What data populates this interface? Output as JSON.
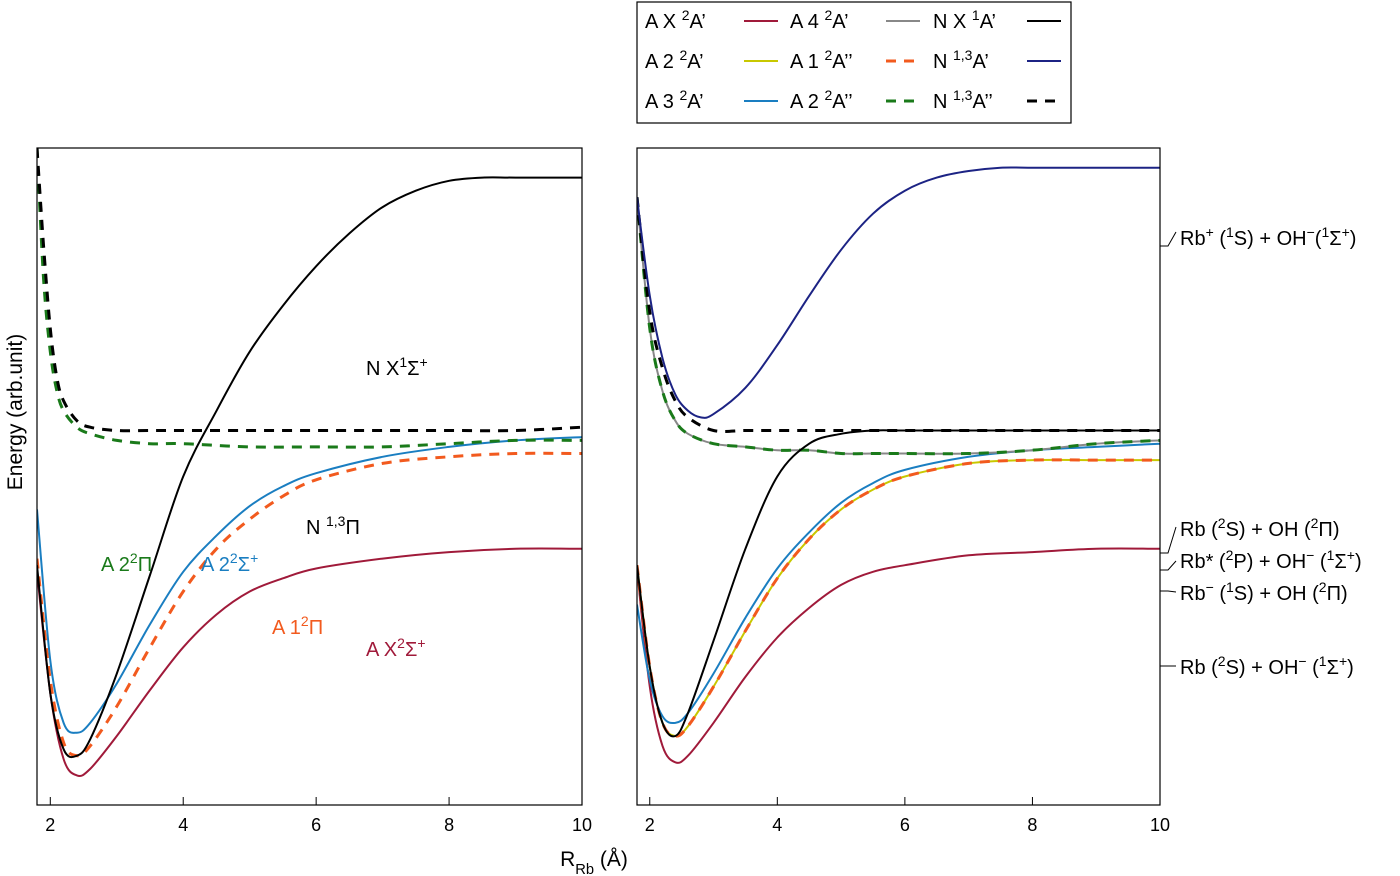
{
  "chart_data": {
    "type": "line",
    "xlabel": "R",
    "xlabel_sub": "Rb",
    "xlabel_unit": " (Å)",
    "ylabel": "Energy (arb.unit)",
    "xlim": [
      1.8,
      10
    ],
    "ylim": [
      -1.0,
      1.0
    ],
    "xticks": [
      "2",
      "4",
      "6",
      "8",
      "10"
    ],
    "grid": false,
    "legend_position": "top-right",
    "legend": [
      {
        "pre": "A X ",
        "sup": "2",
        "post": "A’",
        "color": "#a01a3a",
        "dash": false
      },
      {
        "pre": "A 2 ",
        "sup": "2",
        "post": "A’",
        "color": "#c8c800",
        "dash": false
      },
      {
        "pre": "A 3 ",
        "sup": "2",
        "post": "A’",
        "color": "#1a7ec1",
        "dash": false
      },
      {
        "pre": "A 4 ",
        "sup": "2",
        "post": "A’",
        "color": "#888888",
        "dash": false
      },
      {
        "pre": "A 1 ",
        "sup": "2",
        "post": "A’’",
        "color": "#f25a1e",
        "dash": true
      },
      {
        "pre": "A 2 ",
        "sup": "2",
        "post": "A’’",
        "color": "#1a7a1a",
        "dash": true
      },
      {
        "pre": "N X ",
        "sup": "1",
        "post": "A’",
        "color": "#000000",
        "dash": false
      },
      {
        "pre": "N ",
        "sup": "1,3",
        "post": "A’",
        "color": "#1c2384",
        "dash": false
      },
      {
        "pre": "N ",
        "sup": "1,3",
        "post": "A’’",
        "color": "#000000",
        "dash": true
      }
    ],
    "left_panel": {
      "annotations": [
        {
          "parts": [
            "N X",
            "^1",
            "Σ",
            "^+"
          ],
          "color": "#000000"
        },
        {
          "parts": [
            "N ",
            "^1,3",
            "Π"
          ],
          "color": "#000000"
        },
        {
          "parts": [
            "A 2",
            "^2",
            "Π"
          ],
          "color": "#1a7a1a"
        },
        {
          "parts": [
            "A 2",
            "^2",
            "Σ",
            "^+"
          ],
          "color": "#1a7ec1"
        },
        {
          "parts": [
            "A 1",
            "^2",
            "Π"
          ],
          "color": "#f25a1e"
        },
        {
          "parts": [
            "A X",
            "^2",
            "Σ",
            "^+"
          ],
          "color": "#a01a3a"
        }
      ],
      "series": [
        {
          "name": "A X²Σ⁺",
          "color": "#a01a3a",
          "dash": false,
          "x": [
            1.8,
            2.0,
            2.2,
            2.4,
            2.6,
            3.0,
            3.5,
            4.0,
            4.5,
            5.0,
            5.5,
            6.0,
            7.0,
            8.0,
            9.0,
            10.0
          ],
          "y": [
            -0.29,
            -0.66,
            -0.86,
            -0.91,
            -0.89,
            -0.79,
            -0.65,
            -0.52,
            -0.42,
            -0.35,
            -0.31,
            -0.28,
            -0.25,
            -0.23,
            -0.22,
            -0.22
          ]
        },
        {
          "name": "A 1²Π",
          "color": "#f25a1e",
          "dash": true,
          "x": [
            1.8,
            2.0,
            2.2,
            2.4,
            2.6,
            3.0,
            3.5,
            4.0,
            4.5,
            5.0,
            5.5,
            6.0,
            7.0,
            8.0,
            9.0,
            10.0
          ],
          "y": [
            -0.25,
            -0.62,
            -0.81,
            -0.85,
            -0.82,
            -0.7,
            -0.52,
            -0.35,
            -0.22,
            -0.13,
            -0.06,
            -0.01,
            0.04,
            0.06,
            0.07,
            0.07
          ]
        },
        {
          "name": "A 2²Σ⁺",
          "color": "#1a7ec1",
          "dash": false,
          "x": [
            1.8,
            2.0,
            2.2,
            2.4,
            2.6,
            3.0,
            3.5,
            4.0,
            4.5,
            5.0,
            5.5,
            6.0,
            7.0,
            8.0,
            9.0,
            10.0
          ],
          "y": [
            -0.1,
            -0.56,
            -0.75,
            -0.78,
            -0.75,
            -0.63,
            -0.45,
            -0.29,
            -0.18,
            -0.09,
            -0.03,
            0.01,
            0.06,
            0.09,
            0.11,
            0.12
          ]
        },
        {
          "name": "A 2²Π",
          "color": "#1a7a1a",
          "dash": true,
          "x": [
            1.8,
            1.9,
            2.0,
            2.1,
            2.2,
            2.4,
            2.6,
            3.0,
            3.5,
            4.0,
            5.0,
            6.0,
            7.0,
            8.0,
            9.0,
            10.0
          ],
          "y": [
            1.0,
            0.6,
            0.38,
            0.26,
            0.2,
            0.15,
            0.13,
            0.11,
            0.1,
            0.1,
            0.09,
            0.09,
            0.09,
            0.1,
            0.11,
            0.11
          ]
        },
        {
          "name": "N ¹,³Π",
          "color": "#000000",
          "dash": true,
          "x": [
            1.8,
            1.9,
            2.0,
            2.1,
            2.2,
            2.4,
            2.6,
            3.0,
            3.5,
            4.0,
            5.0,
            6.0,
            7.0,
            8.0,
            9.0,
            10.0
          ],
          "y": [
            1.0,
            0.7,
            0.45,
            0.3,
            0.23,
            0.17,
            0.15,
            0.14,
            0.14,
            0.14,
            0.14,
            0.14,
            0.14,
            0.14,
            0.14,
            0.15
          ]
        },
        {
          "name": "N X¹Σ⁺",
          "color": "#000000",
          "dash": false,
          "x": [
            1.8,
            2.0,
            2.2,
            2.4,
            2.6,
            3.0,
            3.5,
            4.0,
            4.5,
            5.0,
            5.5,
            6.0,
            6.5,
            7.0,
            7.5,
            8.0,
            8.5,
            9.0,
            10.0
          ],
          "y": [
            -0.27,
            -0.66,
            -0.83,
            -0.85,
            -0.8,
            -0.6,
            -0.3,
            0.0,
            0.2,
            0.38,
            0.52,
            0.64,
            0.74,
            0.82,
            0.87,
            0.9,
            0.91,
            0.91,
            0.91
          ]
        }
      ]
    },
    "right_panel": {
      "asymptote_labels": [
        {
          "parts": [
            "Rb",
            "^+",
            " (",
            "^1",
            "S) + OH",
            "^−",
            "(",
            "^1",
            "Σ",
            "^+",
            ")"
          ]
        },
        {
          "parts": [
            "Rb (",
            "^2",
            "S) + OH (",
            "^2",
            "Π)"
          ]
        },
        {
          "parts": [
            "Rb*",
            " (",
            "^2",
            "P) + OH",
            "^−",
            " (",
            "^1",
            "Σ",
            "^+",
            ")"
          ]
        },
        {
          "parts": [
            "Rb",
            "^−",
            " (",
            "^1",
            "S) + OH (",
            "^2",
            "Π)"
          ]
        },
        {
          "parts": [
            "Rb (",
            "^2",
            "S) + OH",
            "^−",
            " (",
            "^1",
            "Σ",
            "^+",
            ")"
          ]
        }
      ],
      "series": [
        {
          "name": "A X ²A’",
          "color": "#a01a3a",
          "dash": false,
          "x": [
            1.8,
            2.0,
            2.2,
            2.4,
            2.6,
            3.0,
            3.5,
            4.0,
            4.5,
            5.0,
            5.5,
            6.0,
            7.0,
            8.0,
            9.0,
            10.0
          ],
          "y": [
            -0.28,
            -0.64,
            -0.82,
            -0.87,
            -0.85,
            -0.75,
            -0.61,
            -0.49,
            -0.4,
            -0.33,
            -0.29,
            -0.27,
            -0.24,
            -0.23,
            -0.22,
            -0.22
          ]
        },
        {
          "name": "A 2 ²A’",
          "color": "#c8c800",
          "dash": false,
          "x": [
            1.8,
            2.0,
            2.2,
            2.4,
            2.6,
            3.0,
            3.5,
            4.0,
            4.5,
            5.0,
            5.5,
            6.0,
            7.0,
            8.0,
            9.0,
            10.0
          ],
          "y": [
            -0.27,
            -0.58,
            -0.75,
            -0.79,
            -0.76,
            -0.64,
            -0.47,
            -0.31,
            -0.19,
            -0.1,
            -0.04,
            0.0,
            0.04,
            0.05,
            0.05,
            0.05
          ]
        },
        {
          "name": "A 1 ²A’’",
          "color": "#f25a1e",
          "dash": true,
          "x": [
            1.8,
            2.0,
            2.2,
            2.4,
            2.6,
            3.0,
            3.5,
            4.0,
            4.5,
            5.0,
            5.5,
            6.0,
            7.0,
            8.0,
            9.0,
            10.0
          ],
          "y": [
            -0.27,
            -0.58,
            -0.75,
            -0.79,
            -0.76,
            -0.64,
            -0.47,
            -0.31,
            -0.19,
            -0.1,
            -0.04,
            0.0,
            0.04,
            0.05,
            0.05,
            0.05
          ]
        },
        {
          "name": "A 3 ²A’",
          "color": "#1a7ec1",
          "dash": false,
          "x": [
            1.8,
            2.0,
            2.2,
            2.4,
            2.6,
            3.0,
            3.5,
            4.0,
            4.5,
            5.0,
            5.5,
            6.0,
            7.0,
            8.0,
            9.0,
            10.0
          ],
          "y": [
            -0.39,
            -0.62,
            -0.73,
            -0.75,
            -0.72,
            -0.6,
            -0.43,
            -0.28,
            -0.17,
            -0.08,
            -0.02,
            0.02,
            0.06,
            0.08,
            0.09,
            0.1
          ]
        },
        {
          "name": "A 4 ²A’",
          "color": "#888888",
          "dash": false,
          "x": [
            1.8,
            2.0,
            2.2,
            2.4,
            2.6,
            3.0,
            3.5,
            4.0,
            4.5,
            5.0,
            5.5,
            6.0,
            7.0,
            8.0,
            9.0,
            10.0
          ],
          "y": [
            0.85,
            0.45,
            0.26,
            0.17,
            0.13,
            0.1,
            0.09,
            0.08,
            0.08,
            0.07,
            0.07,
            0.07,
            0.07,
            0.08,
            0.1,
            0.11
          ]
        },
        {
          "name": "A 2 ²A’’",
          "color": "#1a7a1a",
          "dash": true,
          "x": [
            1.8,
            2.0,
            2.2,
            2.4,
            2.6,
            3.0,
            3.5,
            4.0,
            4.5,
            5.0,
            5.5,
            6.0,
            7.0,
            8.0,
            9.0,
            10.0
          ],
          "y": [
            0.85,
            0.45,
            0.26,
            0.17,
            0.13,
            0.1,
            0.09,
            0.08,
            0.08,
            0.07,
            0.07,
            0.07,
            0.07,
            0.08,
            0.1,
            0.11
          ]
        },
        {
          "name": "N ¹,³A’’",
          "color": "#000000",
          "dash": true,
          "x": [
            1.8,
            2.0,
            2.2,
            2.4,
            2.6,
            3.0,
            3.5,
            4.0,
            5.0,
            6.0,
            7.0,
            8.0,
            9.0,
            10.0
          ],
          "y": [
            0.85,
            0.5,
            0.33,
            0.23,
            0.18,
            0.14,
            0.14,
            0.14,
            0.14,
            0.14,
            0.14,
            0.14,
            0.14,
            0.14
          ]
        },
        {
          "name": "N ¹,³A’",
          "color": "#1c2384",
          "dash": false,
          "x": [
            1.8,
            2.0,
            2.2,
            2.4,
            2.6,
            2.8,
            3.0,
            3.5,
            4.0,
            4.5,
            5.0,
            5.5,
            6.0,
            6.5,
            7.0,
            7.5,
            8.0,
            8.5,
            9.0,
            10.0
          ],
          "y": [
            0.85,
            0.55,
            0.36,
            0.25,
            0.2,
            0.18,
            0.19,
            0.27,
            0.4,
            0.55,
            0.69,
            0.8,
            0.87,
            0.91,
            0.93,
            0.94,
            0.94,
            0.94,
            0.94,
            0.94
          ]
        },
        {
          "name": "N X ¹A’",
          "color": "#000000",
          "dash": false,
          "x": [
            1.8,
            2.0,
            2.2,
            2.4,
            2.6,
            3.0,
            3.5,
            4.0,
            4.5,
            5.0,
            5.5,
            6.0,
            7.0,
            8.0,
            9.0,
            10.0
          ],
          "y": [
            -0.27,
            -0.58,
            -0.75,
            -0.79,
            -0.72,
            -0.5,
            -0.22,
            0.0,
            0.1,
            0.13,
            0.14,
            0.14,
            0.14,
            0.14,
            0.14,
            0.14
          ]
        }
      ]
    }
  }
}
